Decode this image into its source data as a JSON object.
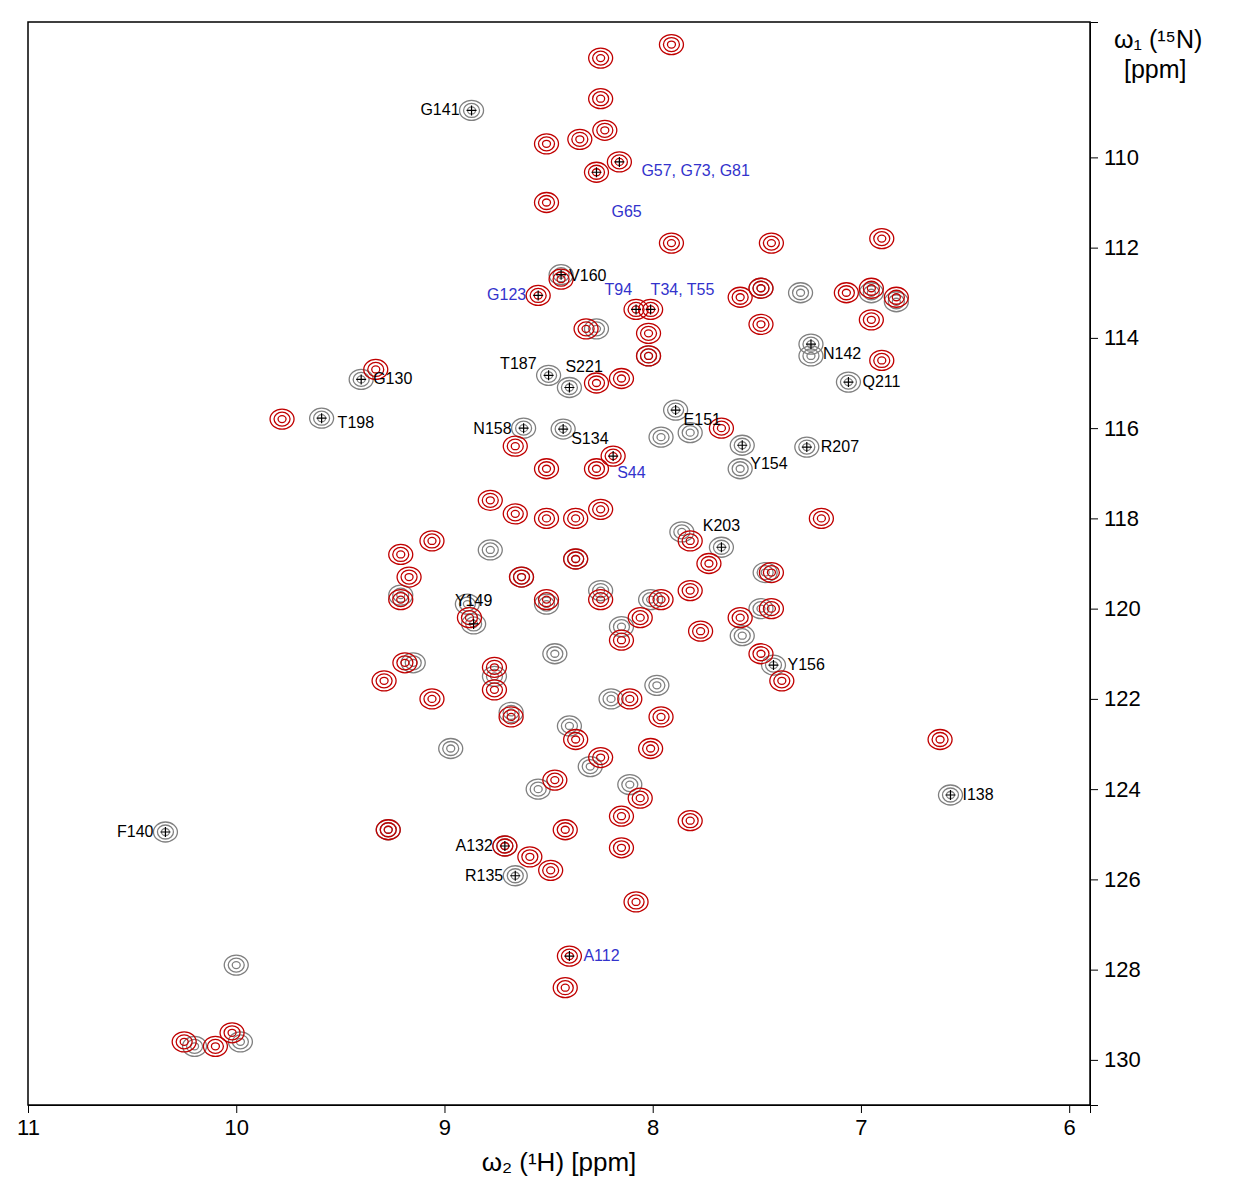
{
  "chart_data": {
    "type": "scatter",
    "x_label": "ω₂ (¹H) [ppm]",
    "y_label": "ω₁ (¹⁵N) [ppm]",
    "xlim": [
      11,
      5.9
    ],
    "ylim": [
      107,
      131
    ],
    "xticks": [
      11,
      10,
      9,
      8,
      7,
      6
    ],
    "yticks": [
      110,
      112,
      114,
      116,
      118,
      120,
      122,
      124,
      126,
      128,
      130
    ],
    "grid": false,
    "series": [
      {
        "color": "#808080",
        "marker": "contour",
        "x": [
          8.87,
          8.44,
          8.5,
          8.4,
          9.4,
          9.59,
          7.24,
          7.06,
          7.89,
          8.62,
          8.43,
          7.57,
          7.26,
          7.67,
          8.86,
          7.42,
          6.57,
          10.34,
          8.71,
          8.66,
          8.27,
          8.02,
          7.48,
          7.29,
          7.24,
          6.95,
          6.83,
          9.27,
          8.78,
          9.21,
          9.15,
          8.76,
          8.68,
          8.63,
          8.51,
          8.37,
          8.25,
          8.15,
          8.01,
          7.86,
          7.57,
          7.46,
          7.48,
          7.96,
          7.82,
          7.58,
          8.97,
          8.4,
          8.3,
          8.11,
          8.2,
          7.98,
          8.47,
          8.55,
          8.89,
          10.0,
          9.98,
          10.2
        ],
        "y": [
          108.96,
          112.6,
          114.83,
          115.1,
          114.92,
          115.78,
          114.14,
          114.98,
          115.6,
          116.0,
          116.02,
          116.38,
          116.42,
          118.64,
          120.34,
          121.25,
          124.13,
          124.95,
          125.26,
          125.92,
          113.8,
          114.4,
          112.9,
          113.0,
          114.4,
          113.0,
          113.2,
          124.9,
          118.7,
          119.7,
          121.2,
          121.5,
          122.3,
          119.3,
          119.9,
          118.9,
          119.6,
          120.4,
          119.8,
          118.3,
          120.6,
          119.2,
          120.0,
          116.2,
          116.1,
          116.9,
          123.1,
          122.6,
          123.5,
          123.9,
          122.0,
          121.7,
          121.0,
          124.0,
          119.9,
          127.9,
          129.6,
          129.7
        ]
      },
      {
        "color": "#c00000",
        "marker": "contour",
        "x": [
          8.16,
          8.27,
          8.55,
          8.44,
          8.08,
          8.01,
          8.19,
          8.4,
          8.71,
          8.25,
          8.25,
          8.23,
          8.51,
          8.51,
          8.35,
          7.91,
          7.43,
          7.48,
          7.58,
          7.48,
          6.9,
          6.95,
          7.07,
          6.95,
          6.83,
          6.9,
          8.32,
          8.02,
          8.02,
          9.33,
          9.78,
          8.27,
          8.15,
          8.51,
          8.27,
          8.66,
          8.78,
          8.66,
          8.51,
          8.37,
          8.25,
          9.21,
          9.17,
          9.21,
          9.19,
          9.29,
          9.06,
          8.76,
          8.76,
          8.68,
          8.63,
          8.51,
          8.37,
          8.25,
          8.15,
          8.06,
          7.96,
          7.82,
          7.82,
          7.73,
          8.11,
          8.01,
          8.06,
          8.15,
          7.96,
          8.25,
          8.15,
          8.37,
          8.47,
          8.42,
          8.49,
          7.82,
          8.08,
          8.42,
          7.77,
          7.58,
          7.43,
          7.43,
          7.91,
          6.62,
          7.48,
          7.67,
          7.19,
          7.38,
          8.88,
          9.06,
          8.59,
          9.27,
          10.02,
          10.1,
          10.25
        ],
        "y": [
          110.1,
          110.33,
          113.06,
          112.7,
          113.37,
          113.37,
          116.62,
          127.7,
          125.26,
          107.8,
          108.7,
          109.4,
          109.7,
          111.0,
          109.6,
          107.5,
          111.9,
          112.9,
          113.1,
          113.7,
          111.8,
          112.9,
          113.0,
          113.6,
          113.1,
          114.5,
          113.8,
          113.9,
          114.4,
          114.7,
          115.8,
          115.0,
          114.9,
          116.9,
          116.9,
          116.4,
          117.6,
          117.9,
          118.0,
          118.0,
          117.8,
          118.8,
          119.3,
          119.8,
          121.2,
          121.6,
          122.0,
          121.3,
          121.8,
          122.4,
          119.3,
          119.8,
          118.9,
          119.8,
          120.7,
          120.2,
          119.8,
          119.6,
          118.5,
          119.0,
          122.0,
          123.1,
          124.2,
          125.3,
          122.4,
          123.3,
          124.6,
          122.9,
          123.8,
          124.9,
          125.8,
          124.7,
          126.5,
          128.4,
          120.5,
          120.2,
          119.2,
          120.0,
          111.9,
          122.9,
          121.0,
          116.0,
          118.0,
          121.6,
          120.2,
          118.5,
          125.5,
          124.9,
          129.4,
          129.7,
          129.6
        ]
      }
    ],
    "annotations": [
      {
        "text": "G141",
        "x": 8.87,
        "y": 108.96,
        "color": "#000000"
      },
      {
        "text": "G57, G73, G81",
        "x": 8.16,
        "y": 110.1,
        "color": "#3333cc"
      },
      {
        "text": "G65",
        "x": 8.27,
        "y": 110.33,
        "color": "#3333cc"
      },
      {
        "text": "G123",
        "x": 8.55,
        "y": 113.06,
        "color": "#3333cc"
      },
      {
        "text": "V160",
        "x": 8.44,
        "y": 112.6,
        "color": "#000000"
      },
      {
        "text": "T94",
        "x": 8.08,
        "y": 113.37,
        "color": "#3333cc"
      },
      {
        "text": "T34, T55",
        "x": 8.01,
        "y": 113.37,
        "color": "#3333cc"
      },
      {
        "text": "T187",
        "x": 8.5,
        "y": 114.83,
        "color": "#000000"
      },
      {
        "text": "S221",
        "x": 8.4,
        "y": 115.1,
        "color": "#000000"
      },
      {
        "text": "G130",
        "x": 9.4,
        "y": 114.92,
        "color": "#000000"
      },
      {
        "text": "T198",
        "x": 9.59,
        "y": 115.78,
        "color": "#000000"
      },
      {
        "text": "N142",
        "x": 7.24,
        "y": 114.14,
        "color": "#000000"
      },
      {
        "text": "Q211",
        "x": 7.06,
        "y": 114.98,
        "color": "#000000"
      },
      {
        "text": "E151",
        "x": 7.89,
        "y": 115.6,
        "color": "#000000"
      },
      {
        "text": "N158",
        "x": 8.62,
        "y": 116.0,
        "color": "#000000"
      },
      {
        "text": "S134",
        "x": 8.43,
        "y": 116.02,
        "color": "#000000"
      },
      {
        "text": "S44",
        "x": 8.19,
        "y": 116.62,
        "color": "#3333cc"
      },
      {
        "text": "Y154",
        "x": 7.57,
        "y": 116.38,
        "color": "#000000"
      },
      {
        "text": "R207",
        "x": 7.26,
        "y": 116.42,
        "color": "#000000"
      },
      {
        "text": "K203",
        "x": 7.67,
        "y": 118.64,
        "color": "#000000"
      },
      {
        "text": "Y149",
        "x": 8.86,
        "y": 120.34,
        "color": "#000000"
      },
      {
        "text": "Y156",
        "x": 7.42,
        "y": 121.25,
        "color": "#000000"
      },
      {
        "text": "I138",
        "x": 6.57,
        "y": 124.13,
        "color": "#000000"
      },
      {
        "text": "F140",
        "x": 10.34,
        "y": 124.95,
        "color": "#000000"
      },
      {
        "text": "A132",
        "x": 8.71,
        "y": 125.26,
        "color": "#000000"
      },
      {
        "text": "R135",
        "x": 8.66,
        "y": 125.92,
        "color": "#000000"
      },
      {
        "text": "A112",
        "x": 8.4,
        "y": 127.7,
        "color": "#3333cc"
      }
    ]
  }
}
